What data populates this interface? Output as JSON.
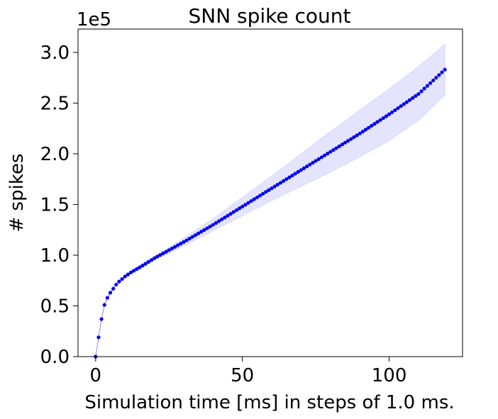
{
  "chart_data": {
    "type": "line",
    "title": "SNN spike count",
    "xlabel": "Simulation time [ms] in steps of 1.0 ms.",
    "ylabel": "# spikes",
    "y_scale_label": "1e5",
    "xlim": [
      -6,
      125
    ],
    "ylim": [
      0,
      3.23
    ],
    "x_ticks": [
      0,
      50,
      100
    ],
    "x_tick_labels": [
      "0",
      "50",
      "100"
    ],
    "y_ticks": [
      0,
      0.5,
      1.0,
      1.5,
      2.0,
      2.5,
      3.0
    ],
    "y_tick_labels": [
      "0.0",
      "0.5",
      "1.0",
      "1.5",
      "2.0",
      "2.5",
      "3.0"
    ],
    "grid": false,
    "legend": "none",
    "x": [
      0,
      1,
      2,
      3,
      4,
      5,
      6,
      7,
      8,
      10,
      12,
      15,
      20,
      25,
      30,
      40,
      50,
      60,
      70,
      80,
      90,
      100,
      110,
      119
    ],
    "values": [
      0,
      0.19,
      0.37,
      0.51,
      0.58,
      0.63,
      0.67,
      0.71,
      0.74,
      0.79,
      0.83,
      0.88,
      0.97,
      1.05,
      1.13,
      1.3,
      1.48,
      1.66,
      1.84,
      2.02,
      2.2,
      2.39,
      2.59,
      2.83
    ],
    "band_upper": [
      0,
      0.2,
      0.38,
      0.52,
      0.59,
      0.64,
      0.68,
      0.72,
      0.75,
      0.8,
      0.84,
      0.9,
      0.99,
      1.08,
      1.17,
      1.36,
      1.57,
      1.78,
      2.0,
      2.22,
      2.43,
      2.64,
      2.86,
      3.08
    ],
    "band_lower": [
      0,
      0.18,
      0.36,
      0.5,
      0.57,
      0.62,
      0.66,
      0.7,
      0.73,
      0.78,
      0.82,
      0.86,
      0.95,
      1.02,
      1.09,
      1.24,
      1.39,
      1.54,
      1.68,
      1.82,
      1.97,
      2.13,
      2.33,
      2.58
    ],
    "colors": {
      "marker": "#0000ee",
      "line": "#8f8fff",
      "band": "#e4e4ff",
      "axes": "#000000"
    }
  }
}
